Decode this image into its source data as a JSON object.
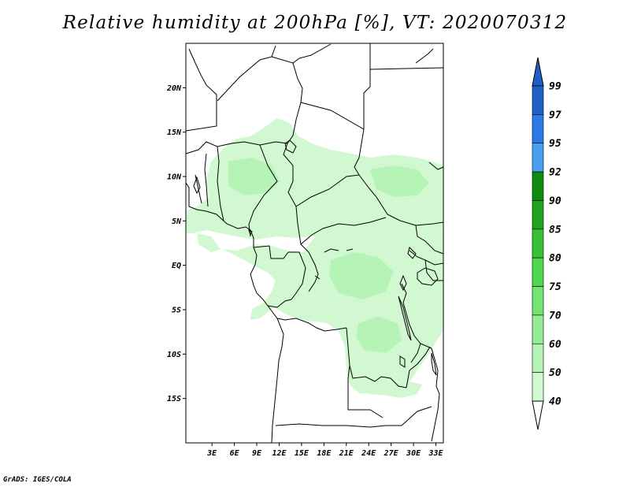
{
  "title": "Relative humidity at 200hPa [%], VT: 2020070312",
  "credit": "GrADS: IGES/COLA",
  "map": {
    "lon_range": [
      -0.5,
      34
    ],
    "lat_range": [
      -20,
      25
    ],
    "lat_ticks": [
      "20N",
      "15N",
      "10N",
      "5N",
      "EQ",
      "5S",
      "10S",
      "15S"
    ],
    "lon_ticks": [
      "3E",
      "6E",
      "9E",
      "12E",
      "15E",
      "18E",
      "21E",
      "24E",
      "27E",
      "30E",
      "33E"
    ]
  },
  "colorbar": {
    "levels": [
      "99",
      "97",
      "95",
      "92",
      "90",
      "85",
      "80",
      "75",
      "70",
      "60",
      "50",
      "40"
    ],
    "colors": [
      "#1e5fc8",
      "#2c7ae6",
      "#4aa0f0",
      "#0f8c0f",
      "#21a321",
      "#37c137",
      "#4ed84e",
      "#74e474",
      "#96ec96",
      "#b6f3b6",
      "#d2f8d2",
      "#ebfbeb"
    ],
    "top_triangle_color": "#1e5fc8",
    "bottom_triangle_color": "#ffffff"
  },
  "field_colors": {
    "light": "#d2f8d2",
    "mid": "#b6f3b6"
  }
}
